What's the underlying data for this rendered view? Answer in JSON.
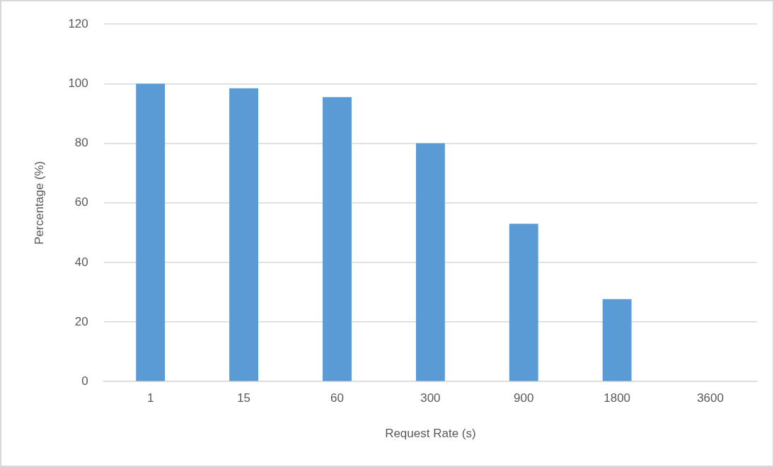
{
  "chart_data": {
    "type": "bar",
    "xlabel": "Request Rate (s)",
    "ylabel": "Percentage (%)",
    "categories": [
      "1",
      "15",
      "60",
      "300",
      "900",
      "1800",
      "3600"
    ],
    "values": [
      100,
      98.5,
      95.5,
      80,
      53,
      27.7,
      0
    ],
    "color": "#5b9bd5",
    "ylim": [
      0,
      120
    ],
    "yticks": [
      0,
      20,
      40,
      60,
      80,
      100,
      120
    ],
    "grid": "y",
    "legend": false
  }
}
